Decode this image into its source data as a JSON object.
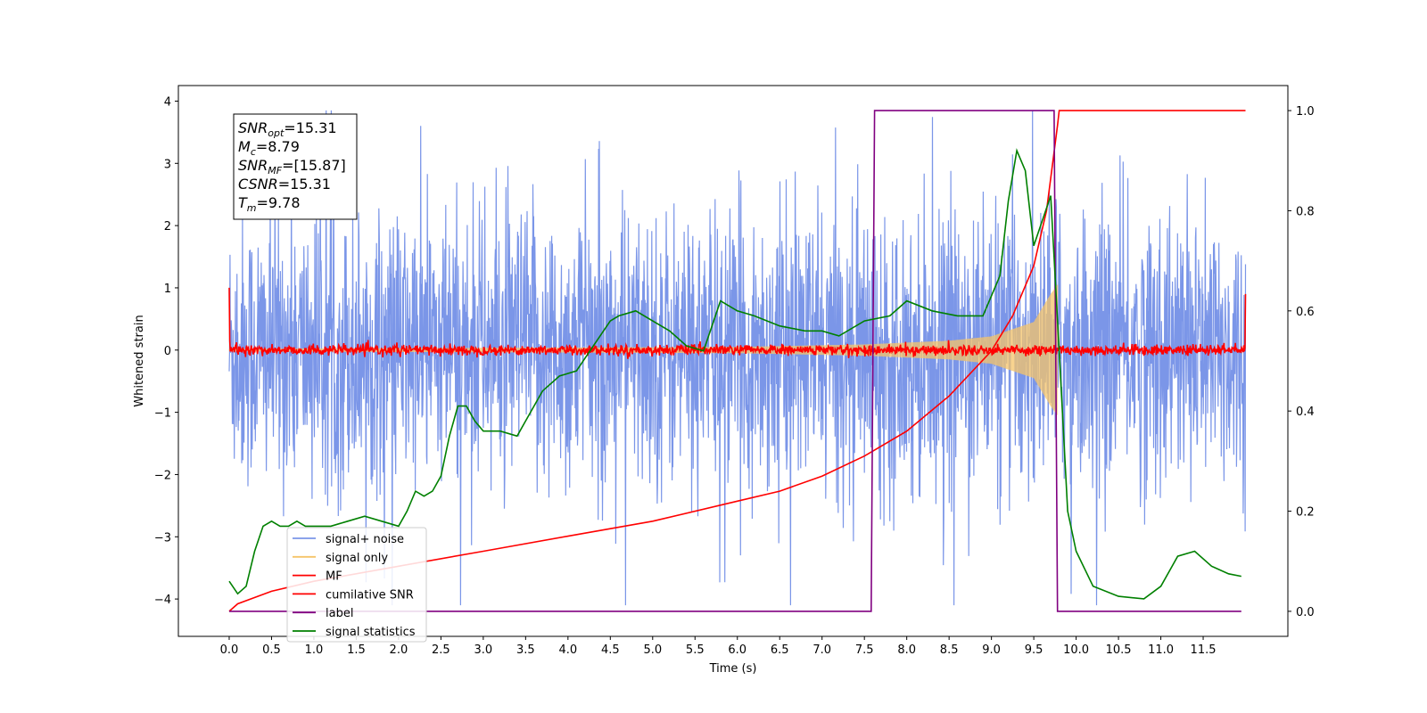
{
  "chart_data": {
    "type": "line",
    "xlabel": "Time (s)",
    "ylabel": "Whitened strain",
    "xlim": [
      -0.6,
      12.5
    ],
    "ylim": [
      -4.6,
      4.25
    ],
    "y2lim": [
      -0.05,
      1.05
    ],
    "x_ticks": [
      0.0,
      0.5,
      1.0,
      1.5,
      2.0,
      2.5,
      3.0,
      3.5,
      4.0,
      4.5,
      5.0,
      5.5,
      6.0,
      6.5,
      7.0,
      7.5,
      8.0,
      8.5,
      9.0,
      9.5,
      10.0,
      10.5,
      11.0,
      11.5
    ],
    "x_tick_labels": [
      "0.0",
      "0.5",
      "1.0",
      "1.5",
      "2.0",
      "2.5",
      "3.0",
      "3.5",
      "4.0",
      "4.5",
      "5.0",
      "5.5",
      "6.0",
      "6.5",
      "7.0",
      "7.5",
      "8.0",
      "8.5",
      "9.0",
      "9.5",
      "10.0",
      "10.5",
      "11.0",
      "11.5"
    ],
    "y_ticks": [
      4,
      3,
      2,
      1,
      0,
      -1,
      -2,
      -3,
      -4
    ],
    "y_tick_labels": [
      "4",
      "3",
      "2",
      "1",
      "0",
      "−1",
      "−2",
      "−3",
      "−4"
    ],
    "y2_ticks": [
      1.0,
      0.8,
      0.6,
      0.4,
      0.2,
      0.0
    ],
    "y2_tick_labels": [
      "1.0",
      "0.8",
      "0.6",
      "0.4",
      "0.2",
      "0.0"
    ],
    "legend_position": "lower-left",
    "grid": false,
    "info_box": [
      {
        "sym": "SNR",
        "sub": "opt",
        "val": "=15.31"
      },
      {
        "sym": "M",
        "sub": "c",
        "val": "=8.79"
      },
      {
        "sym": "SNR",
        "sub": "MF",
        "val": "=[15.87]"
      },
      {
        "sym": "CSNR",
        "sub": "",
        "val": "=15.31"
      },
      {
        "sym": "T",
        "sub": "m",
        "val": "=9.78"
      }
    ],
    "series": [
      {
        "name": "signal+ noise",
        "color": "#7b96e8",
        "axis": "left",
        "kind": "noise",
        "x_range": [
          0.0,
          12.0
        ],
        "approx_range": [
          -4.1,
          3.85
        ],
        "note_values": {
          "typical_amplitude": 1.1
        }
      },
      {
        "name": "signal only",
        "color": "#f5c469",
        "axis": "left",
        "kind": "chirp",
        "x_range": [
          0.0,
          9.78
        ],
        "envelope_x": [
          0.0,
          6.0,
          7.5,
          8.5,
          9.0,
          9.5,
          9.7,
          9.78
        ],
        "envelope_y": [
          0.02,
          0.05,
          0.09,
          0.15,
          0.22,
          0.45,
          0.9,
          1.05
        ]
      },
      {
        "name": "MF",
        "color": "#ff0000",
        "axis": "left",
        "kind": "mf",
        "x_range": [
          0.0,
          12.0
        ],
        "start_value": 1.0,
        "end_value": 0.9,
        "typical_amplitude": 0.07
      },
      {
        "name": "cumilative SNR",
        "color": "#ff0000",
        "axis": "right",
        "x": [
          0.0,
          0.1,
          0.5,
          1.0,
          2.0,
          3.0,
          4.0,
          5.0,
          6.0,
          6.5,
          7.0,
          7.5,
          8.0,
          8.5,
          9.0,
          9.25,
          9.5,
          9.65,
          9.78,
          9.8,
          12.0
        ],
        "values": [
          0.0,
          0.015,
          0.04,
          0.06,
          0.09,
          0.12,
          0.15,
          0.18,
          0.22,
          0.24,
          0.27,
          0.31,
          0.36,
          0.43,
          0.52,
          0.59,
          0.69,
          0.8,
          0.97,
          1.0,
          1.0
        ]
      },
      {
        "name": "label",
        "color": "#800080",
        "axis": "right",
        "x": [
          0.0,
          7.58,
          7.62,
          9.74,
          9.78,
          11.95
        ],
        "values": [
          0.0,
          0.0,
          1.0,
          1.0,
          0.0,
          0.0
        ]
      },
      {
        "name": "signal statistics",
        "color": "#008000",
        "axis": "right",
        "x": [
          0.0,
          0.1,
          0.2,
          0.3,
          0.4,
          0.5,
          0.6,
          0.7,
          0.8,
          0.9,
          1.0,
          1.2,
          1.4,
          1.6,
          1.8,
          2.0,
          2.1,
          2.2,
          2.3,
          2.4,
          2.5,
          2.6,
          2.7,
          2.8,
          2.9,
          3.0,
          3.2,
          3.4,
          3.5,
          3.7,
          3.9,
          4.1,
          4.3,
          4.5,
          4.6,
          4.8,
          5.0,
          5.2,
          5.4,
          5.6,
          5.8,
          6.0,
          6.2,
          6.5,
          6.8,
          7.0,
          7.2,
          7.5,
          7.8,
          8.0,
          8.3,
          8.6,
          8.9,
          9.1,
          9.2,
          9.3,
          9.4,
          9.5,
          9.6,
          9.7,
          9.8,
          9.9,
          10.0,
          10.2,
          10.5,
          10.8,
          11.0,
          11.2,
          11.4,
          11.6,
          11.8,
          11.95
        ],
        "values": [
          0.06,
          0.035,
          0.05,
          0.12,
          0.17,
          0.18,
          0.17,
          0.17,
          0.18,
          0.17,
          0.17,
          0.17,
          0.18,
          0.19,
          0.18,
          0.17,
          0.2,
          0.24,
          0.23,
          0.24,
          0.27,
          0.35,
          0.41,
          0.41,
          0.38,
          0.36,
          0.36,
          0.35,
          0.38,
          0.44,
          0.47,
          0.48,
          0.53,
          0.58,
          0.59,
          0.6,
          0.58,
          0.56,
          0.53,
          0.52,
          0.62,
          0.6,
          0.59,
          0.57,
          0.56,
          0.56,
          0.55,
          0.58,
          0.59,
          0.62,
          0.6,
          0.59,
          0.59,
          0.67,
          0.82,
          0.92,
          0.88,
          0.73,
          0.78,
          0.83,
          0.52,
          0.2,
          0.12,
          0.05,
          0.03,
          0.025,
          0.05,
          0.11,
          0.12,
          0.09,
          0.075,
          0.07
        ]
      }
    ]
  }
}
